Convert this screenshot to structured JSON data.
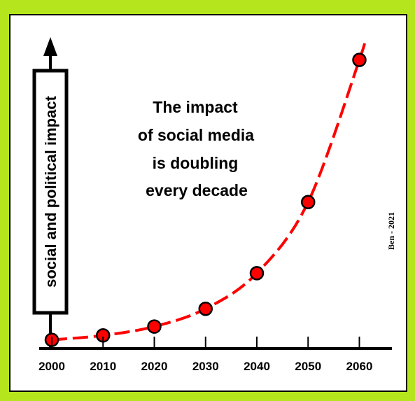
{
  "chart_data": {
    "type": "line",
    "title": "",
    "ylabel": "social and political impact",
    "xlabel": "",
    "categories": [
      "2000",
      "2010",
      "2020",
      "2030",
      "2040",
      "2050",
      "2060"
    ],
    "x": [
      2000,
      2010,
      2020,
      2030,
      2040,
      2050,
      2060
    ],
    "series": [
      {
        "values": [
          1,
          2,
          4,
          8,
          16,
          32,
          64
        ]
      }
    ],
    "ylim": [
      0,
      80
    ],
    "xlim": [
      2000,
      2061
    ],
    "grid": false,
    "legend": "none",
    "annotation": [
      "The impact",
      "of social media",
      "is doubling",
      "every decade"
    ],
    "credit": "Ben - 2021",
    "colors": {
      "background": "#b5e61d",
      "panel": "#ffffff",
      "line": "#ff0000",
      "marker": "#ff0000",
      "axis": "#000000"
    }
  }
}
